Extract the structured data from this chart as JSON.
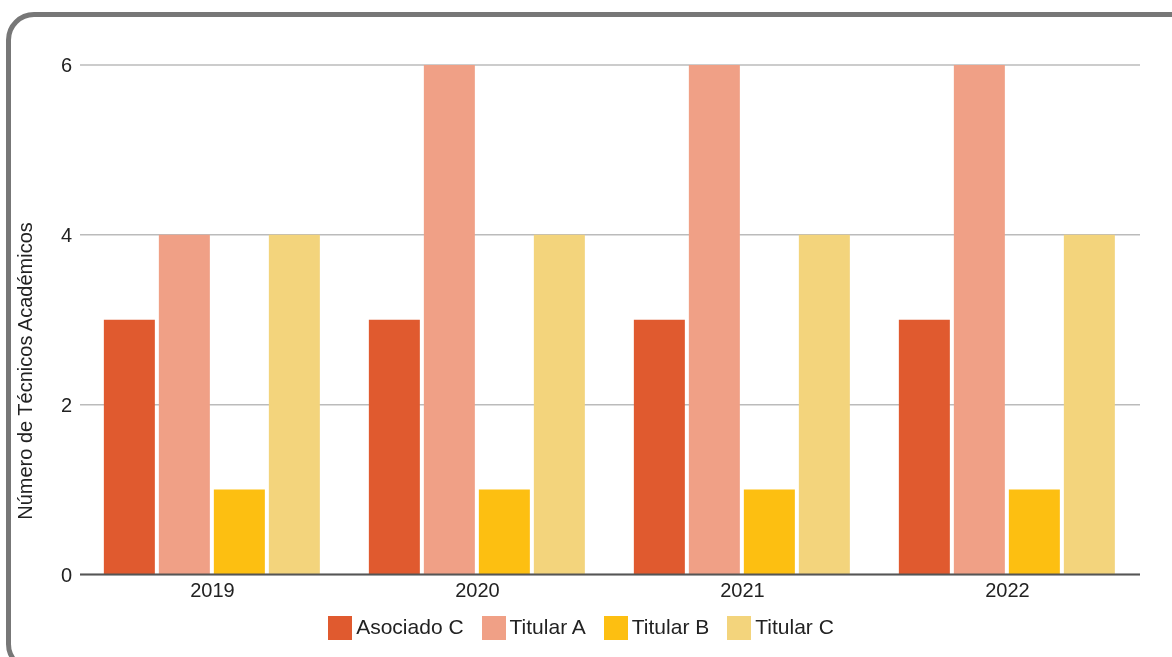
{
  "chart_data": {
    "type": "bar",
    "ylabel": "Número de Técnicos Académicos",
    "categories": [
      "2019",
      "2020",
      "2021",
      "2022"
    ],
    "series": [
      {
        "name": "Asociado C",
        "color": "#e05a2f",
        "values": [
          3,
          3,
          3,
          3
        ]
      },
      {
        "name": "Titular A",
        "color": "#f0a086",
        "values": [
          4,
          6,
          6,
          6
        ]
      },
      {
        "name": "Titular B",
        "color": "#fdbf11",
        "values": [
          1,
          1,
          1,
          1
        ]
      },
      {
        "name": "Titular C",
        "color": "#f3d47c",
        "values": [
          4,
          4,
          4,
          4
        ]
      }
    ],
    "ylim": [
      0,
      6
    ],
    "yticks": [
      0,
      2,
      4,
      6
    ],
    "grid": "y",
    "legend": "bottom"
  }
}
